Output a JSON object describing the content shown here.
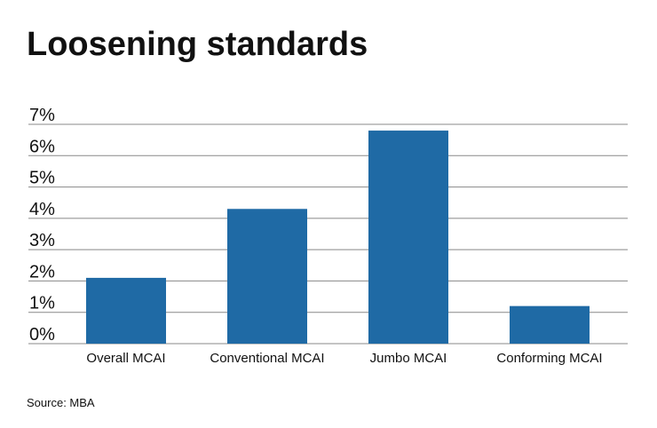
{
  "chart_data": {
    "type": "bar",
    "title": "Loosening standards",
    "source": "Source: MBA",
    "categories": [
      "Overall MCAI",
      "Conventional MCAI",
      "Jumbo MCAI",
      "Conforming MCAI"
    ],
    "values": [
      2.1,
      4.3,
      6.8,
      1.2
    ],
    "color": "#1f6aa5",
    "ylim": [
      0,
      7
    ],
    "yticks": [
      {
        "value": 0,
        "label": "0%"
      },
      {
        "value": 1,
        "label": "1%"
      },
      {
        "value": 2,
        "label": "2%"
      },
      {
        "value": 3,
        "label": "3%"
      },
      {
        "value": 4,
        "label": "4%"
      },
      {
        "value": 5,
        "label": "5%"
      },
      {
        "value": 6,
        "label": "6%"
      },
      {
        "value": 7,
        "label": "7%"
      }
    ],
    "grid": true
  }
}
